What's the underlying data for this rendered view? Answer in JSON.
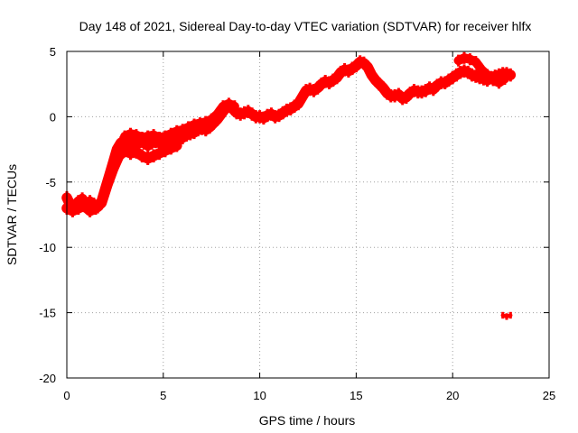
{
  "chart_data": {
    "type": "scatter",
    "title": "Day 148 of 2021, Sidereal Day-to-day VTEC variation (SDTVAR) for receiver hlfx",
    "xlabel": "GPS time / hours",
    "ylabel": "SDTVAR / TECUs",
    "xlim": [
      0,
      25
    ],
    "ylim": [
      -20,
      5
    ],
    "x_ticks": [
      0,
      5,
      10,
      15,
      20,
      25
    ],
    "y_ticks": [
      -20,
      -15,
      -10,
      -5,
      0,
      5
    ],
    "grid": true,
    "colors": {
      "series": "#ff0000",
      "grid": "#a0a0a0",
      "axis": "#000000"
    },
    "series": [
      {
        "band_halfwidth": 0.4,
        "points": [
          [
            0.0,
            -6.2
          ],
          [
            0.2,
            -6.8
          ],
          [
            0.4,
            -7.0
          ],
          [
            0.6,
            -6.5
          ],
          [
            0.8,
            -6.3
          ],
          [
            1.0,
            -6.8
          ],
          [
            1.2,
            -6.5
          ],
          [
            1.4,
            -6.7
          ],
          [
            1.6,
            -6.9
          ],
          [
            1.8,
            -6.5
          ],
          [
            2.0,
            -5.5
          ],
          [
            2.2,
            -4.5
          ],
          [
            2.4,
            -3.5
          ],
          [
            2.6,
            -2.5
          ],
          [
            2.8,
            -2.0
          ],
          [
            3.0,
            -1.8
          ],
          [
            3.2,
            -2.0
          ],
          [
            3.4,
            -1.9
          ],
          [
            3.6,
            -2.1
          ],
          [
            3.8,
            -1.9
          ],
          [
            4.0,
            -2.0
          ],
          [
            4.2,
            -2.2
          ],
          [
            4.4,
            -2.0
          ],
          [
            4.6,
            -1.9
          ],
          [
            4.8,
            -2.0
          ],
          [
            5.0,
            -1.8
          ],
          [
            5.2,
            -2.1
          ],
          [
            5.4,
            -2.0
          ],
          [
            5.6,
            -1.8
          ],
          [
            5.8,
            -1.5
          ],
          [
            6.0,
            -1.6
          ],
          [
            6.2,
            -1.4
          ],
          [
            6.4,
            -1.3
          ],
          [
            6.6,
            -1.2
          ],
          [
            6.8,
            -1.0
          ],
          [
            7.0,
            -0.9
          ],
          [
            7.2,
            -1.0
          ],
          [
            7.4,
            -0.8
          ],
          [
            7.6,
            -0.5
          ],
          [
            7.8,
            -0.2
          ],
          [
            8.0,
            0.2
          ],
          [
            8.2,
            0.6
          ],
          [
            8.4,
            0.8
          ],
          [
            8.6,
            0.6
          ],
          [
            8.8,
            0.3
          ],
          [
            9.0,
            0.2
          ],
          [
            9.2,
            0.3
          ],
          [
            9.4,
            0.4
          ],
          [
            9.6,
            0.2
          ],
          [
            9.8,
            0.0
          ],
          [
            10.0,
            0.0
          ],
          [
            10.2,
            -0.1
          ],
          [
            10.4,
            0.1
          ],
          [
            10.6,
            0.2
          ],
          [
            10.8,
            0.0
          ],
          [
            11.0,
            0.1
          ],
          [
            11.2,
            0.3
          ],
          [
            11.4,
            0.5
          ],
          [
            11.6,
            0.6
          ],
          [
            11.8,
            0.8
          ],
          [
            12.0,
            1.0
          ],
          [
            12.2,
            1.5
          ],
          [
            12.4,
            2.0
          ],
          [
            12.6,
            2.1
          ],
          [
            12.8,
            2.0
          ],
          [
            13.0,
            2.2
          ],
          [
            13.2,
            2.5
          ],
          [
            13.4,
            2.7
          ],
          [
            13.6,
            2.6
          ],
          [
            13.8,
            2.8
          ],
          [
            14.0,
            3.0
          ],
          [
            14.2,
            3.4
          ],
          [
            14.4,
            3.6
          ],
          [
            14.6,
            3.5
          ],
          [
            14.8,
            3.7
          ],
          [
            15.0,
            3.9
          ],
          [
            15.2,
            4.2
          ],
          [
            15.4,
            4.1
          ],
          [
            15.6,
            3.8
          ],
          [
            15.8,
            3.2
          ],
          [
            16.0,
            2.8
          ],
          [
            16.2,
            2.5
          ],
          [
            16.4,
            2.2
          ],
          [
            16.6,
            1.8
          ],
          [
            16.8,
            1.6
          ],
          [
            17.0,
            1.6
          ],
          [
            17.2,
            1.7
          ],
          [
            17.4,
            1.4
          ],
          [
            17.6,
            1.5
          ],
          [
            17.8,
            1.8
          ],
          [
            18.0,
            2.0
          ],
          [
            18.2,
            1.9
          ],
          [
            18.4,
            1.9
          ],
          [
            18.6,
            2.0
          ],
          [
            18.8,
            2.2
          ],
          [
            19.0,
            2.1
          ],
          [
            19.2,
            2.4
          ],
          [
            19.4,
            2.6
          ],
          [
            19.6,
            2.6
          ],
          [
            19.8,
            2.8
          ],
          [
            20.0,
            3.0
          ],
          [
            20.2,
            3.2
          ],
          [
            20.4,
            3.4
          ],
          [
            20.6,
            3.5
          ],
          [
            20.8,
            3.4
          ],
          [
            21.0,
            3.2
          ],
          [
            21.2,
            3.1
          ],
          [
            21.4,
            3.0
          ],
          [
            21.6,
            2.9
          ],
          [
            21.8,
            2.8
          ],
          [
            22.0,
            3.0
          ],
          [
            22.2,
            3.1
          ],
          [
            22.4,
            3.2
          ],
          [
            22.6,
            3.3
          ],
          [
            22.8,
            3.3
          ],
          [
            23.0,
            3.2
          ]
        ]
      },
      {
        "band_halfwidth": 0.4,
        "points": [
          [
            0.0,
            -7.0
          ],
          [
            0.3,
            -7.2
          ],
          [
            0.6,
            -7.0
          ],
          [
            0.9,
            -6.8
          ],
          [
            1.2,
            -7.2
          ],
          [
            1.5,
            -7.0
          ],
          [
            1.8,
            -6.6
          ],
          [
            2.1,
            -5.2
          ],
          [
            2.4,
            -4.0
          ],
          [
            2.7,
            -3.0
          ],
          [
            3.0,
            -2.6
          ],
          [
            3.3,
            -2.8
          ],
          [
            3.6,
            -2.7
          ],
          [
            3.9,
            -3.0
          ],
          [
            4.2,
            -3.2
          ],
          [
            4.5,
            -3.0
          ],
          [
            4.8,
            -2.8
          ],
          [
            5.1,
            -2.6
          ],
          [
            5.4,
            -2.4
          ],
          [
            5.7,
            -2.2
          ]
        ]
      },
      {
        "band_halfwidth": 0.35,
        "points": [
          [
            3.0,
            -1.5
          ],
          [
            3.3,
            -1.3
          ],
          [
            3.6,
            -1.4
          ],
          [
            3.9,
            -1.6
          ],
          [
            4.2,
            -1.5
          ],
          [
            4.5,
            -1.4
          ],
          [
            4.8,
            -1.6
          ],
          [
            5.1,
            -1.5
          ],
          [
            5.4,
            -1.3
          ],
          [
            5.7,
            -1.1
          ],
          [
            6.0,
            -1.0
          ],
          [
            6.3,
            -0.8
          ],
          [
            6.6,
            -0.6
          ],
          [
            6.9,
            -0.5
          ],
          [
            7.2,
            -0.4
          ],
          [
            7.5,
            -0.2
          ],
          [
            7.8,
            0.2
          ],
          [
            8.1,
            0.8
          ],
          [
            8.4,
            1.0
          ],
          [
            8.7,
            0.8
          ]
        ]
      },
      {
        "band_halfwidth": 0.35,
        "points": [
          [
            20.3,
            4.3
          ],
          [
            20.6,
            4.5
          ],
          [
            20.9,
            4.4
          ],
          [
            21.2,
            4.2
          ],
          [
            21.5,
            3.6
          ],
          [
            21.8,
            3.2
          ],
          [
            22.1,
            2.8
          ],
          [
            22.4,
            2.6
          ],
          [
            22.7,
            2.9
          ]
        ]
      },
      {
        "band_halfwidth": 0.15,
        "points": [
          [
            22.6,
            -15.2
          ],
          [
            22.8,
            -15.3
          ],
          [
            23.0,
            -15.2
          ]
        ]
      }
    ]
  }
}
